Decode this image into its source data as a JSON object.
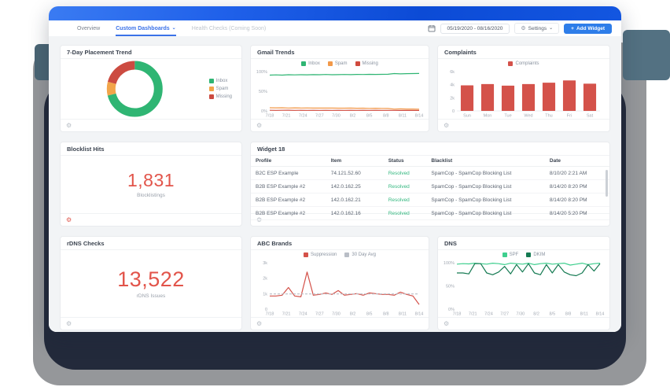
{
  "nav": {
    "tabs": [
      {
        "label": "Overview"
      },
      {
        "label": "Custom Dashboards"
      },
      {
        "label": "Health Checks (Coming Soon)"
      }
    ],
    "date_range": "05/19/2020 - 08/16/2020",
    "settings_label": "Settings",
    "add_widget_label": "Add Widget"
  },
  "icons": {
    "gear": "⚙",
    "caret": "⌄",
    "plus": "+"
  },
  "widgets": {
    "placement": {
      "title": "7-Day Placement Trend"
    },
    "gmail": {
      "title": "Gmail Trends"
    },
    "complaints": {
      "title": "Complaints"
    },
    "blocklist": {
      "title": "Blocklist Hits",
      "value": "1,831",
      "subtitle": "Blocklistings"
    },
    "widget18": {
      "title": "Widget 18"
    },
    "rdns": {
      "title": "rDNS Checks",
      "value": "13,522",
      "subtitle": "rDNS Issues"
    },
    "abc": {
      "title": "ABC Brands"
    },
    "dns": {
      "title": "DNS"
    }
  },
  "table": {
    "headers": [
      "Profile",
      "Item",
      "Status",
      "Blacklist",
      "Date"
    ],
    "rows": [
      {
        "profile": "B2C ESP Example",
        "item": "74.121.52.60",
        "status": "Resolved",
        "blacklist": "SpamCop - SpamCop Blocking List",
        "date": "8/10/20 2:21 AM"
      },
      {
        "profile": "B2B ESP Example #2",
        "item": "142.0.162.25",
        "status": "Resolved",
        "blacklist": "SpamCop - SpamCop Blocking List",
        "date": "8/14/20 8:20 PM"
      },
      {
        "profile": "B2B ESP Example #2",
        "item": "142.0.162.21",
        "status": "Resolved",
        "blacklist": "SpamCop - SpamCop Blocking List",
        "date": "8/14/20 8:20 PM"
      },
      {
        "profile": "B2B ESP Example #2",
        "item": "142.0.162.16",
        "status": "Resolved",
        "blacklist": "SpamCop - SpamCop Blocking List",
        "date": "8/14/20 5:20 PM"
      }
    ]
  },
  "chart_data": [
    {
      "id": "placement",
      "type": "donut",
      "title": "7-Day Placement Trend",
      "slices": [
        {
          "label": "Inbox",
          "value": 71,
          "color": "#2fb573"
        },
        {
          "label": "Spam",
          "value": 8,
          "color": "#f2a54a"
        },
        {
          "label": "Missing",
          "value": 21,
          "color": "#cc4b41"
        }
      ],
      "legend_position": "right"
    },
    {
      "id": "gmail",
      "type": "line",
      "title": "Gmail Trends",
      "ylim": [
        0,
        100
      ],
      "yticks": [
        {
          "v": 100,
          "label": "100%"
        },
        {
          "v": 50,
          "label": "50%"
        },
        {
          "v": 0,
          "label": "0%"
        }
      ],
      "xlabels": [
        "7/18",
        "7/21",
        "7/24",
        "7/27",
        "7/30",
        "8/2",
        "8/5",
        "8/8",
        "8/11",
        "8/14"
      ],
      "legend_position": "top",
      "series": [
        {
          "name": "Inbox",
          "color": "#2fb573",
          "values": [
            91,
            91.5,
            91,
            92,
            91.5,
            92,
            91.8,
            92.2,
            92,
            92.5,
            92,
            92.3,
            92.5,
            92.2,
            92.8,
            92.5,
            93,
            92.8,
            93,
            93.2,
            95,
            94.3,
            94.8,
            95,
            95.2
          ]
        },
        {
          "name": "Spam",
          "color": "#f2994a",
          "values": [
            8,
            7.8,
            8,
            7.5,
            7.8,
            7.5,
            7.6,
            7.3,
            7.4,
            7.2,
            7.3,
            7.1,
            7,
            7.2,
            6.8,
            7,
            6.5,
            6.8,
            6.5,
            6.2,
            4.6,
            5.2,
            4.8,
            4.7,
            4.5
          ]
        },
        {
          "name": "Missing",
          "color": "#d04a3e",
          "values": [
            1.6,
            1.5,
            1.6,
            1.7,
            1.5,
            1.6,
            1.5,
            1.6,
            1.4,
            1.6,
            1.5,
            1.6,
            1.5,
            1.6,
            1.5,
            1.6,
            1.5,
            1.6,
            1.4,
            1.5,
            1.4,
            1.3,
            1.4,
            1.3,
            1.3
          ]
        }
      ]
    },
    {
      "id": "complaints",
      "type": "bar",
      "title": "Complaints",
      "ylim": [
        0,
        6000
      ],
      "yticks": [
        {
          "v": 6000,
          "label": "6k"
        },
        {
          "v": 4000,
          "label": "4k"
        },
        {
          "v": 2000,
          "label": "2k"
        },
        {
          "v": 0,
          "label": "0"
        }
      ],
      "categories": [
        "Sun",
        "Mon",
        "Tue",
        "Wed",
        "Thu",
        "Fri",
        "Sat"
      ],
      "legend_position": "top",
      "series": [
        {
          "name": "Complaints",
          "color": "#d4524a",
          "values": [
            3900,
            4100,
            3850,
            4100,
            4300,
            4650,
            4150
          ]
        }
      ]
    },
    {
      "id": "abc",
      "type": "line",
      "title": "ABC Brands",
      "ylim": [
        0,
        3000
      ],
      "yticks": [
        {
          "v": 3000,
          "label": "3k"
        },
        {
          "v": 2000,
          "label": "2k"
        },
        {
          "v": 1000,
          "label": "1k"
        },
        {
          "v": 0,
          "label": "0"
        }
      ],
      "xlabels": [
        "7/18",
        "7/21",
        "7/24",
        "7/27",
        "7/30",
        "8/2",
        "8/5",
        "8/8",
        "8/11",
        "8/14"
      ],
      "legend_position": "top",
      "series": [
        {
          "name": "Suppression",
          "color": "#d4524a",
          "values": [
            850,
            850,
            900,
            1400,
            850,
            800,
            2400,
            900,
            950,
            1050,
            950,
            1200,
            900,
            950,
            1000,
            900,
            1050,
            1000,
            950,
            950,
            900,
            1100,
            950,
            850,
            300
          ]
        },
        {
          "name": "30 Day Avg",
          "color": "#b9bec6",
          "dash": true,
          "const": 980,
          "n": 25
        }
      ]
    },
    {
      "id": "dns",
      "type": "line",
      "title": "DNS",
      "ylim": [
        0,
        100
      ],
      "yticks": [
        {
          "v": 100,
          "label": "100%"
        },
        {
          "v": 50,
          "label": "50%"
        },
        {
          "v": 0,
          "label": "0%"
        }
      ],
      "xlabels": [
        "7/18",
        "7/21",
        "7/24",
        "7/27",
        "7/30",
        "8/2",
        "8/5",
        "8/8",
        "8/11",
        "8/14"
      ],
      "legend_position": "top",
      "series": [
        {
          "name": "SPF",
          "color": "#3ecf8e",
          "values": [
            97,
            98,
            97.5,
            99,
            98,
            97,
            99,
            98,
            96,
            99,
            98,
            97,
            99,
            96,
            98,
            99,
            97,
            98,
            99,
            95,
            97,
            99,
            96,
            98,
            99
          ]
        },
        {
          "name": "DKIM",
          "color": "#157a52",
          "values": [
            78,
            78,
            76,
            98,
            98,
            78,
            74,
            80,
            92,
            76,
            96,
            80,
            98,
            78,
            74,
            96,
            78,
            96,
            80,
            74,
            72,
            78,
            96,
            82,
            98
          ]
        }
      ]
    }
  ],
  "colors": {
    "accent_blue": "#2e7de9",
    "big_number_red": "#e2544a",
    "status_green": "#36b881",
    "navy_pedestal": "#232a3b",
    "shadow_gray": "#95979a",
    "teal_accent": "#537182"
  }
}
